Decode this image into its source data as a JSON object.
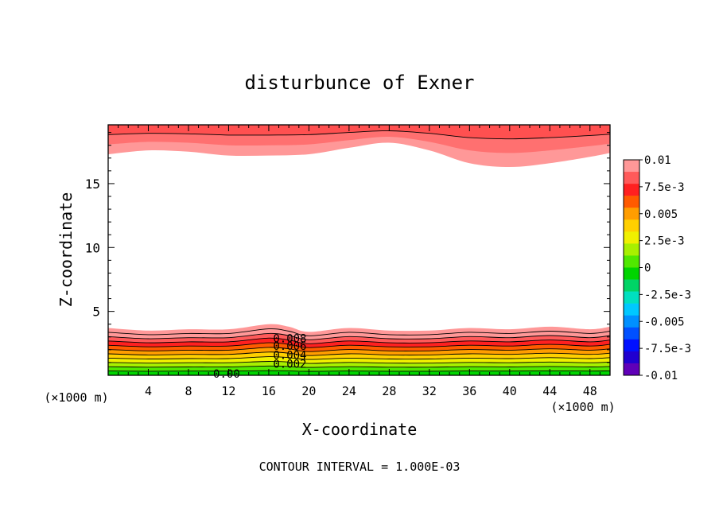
{
  "chart_data": {
    "type": "contour",
    "title": "disturbunce of Exner",
    "xlabel": "X-coordinate",
    "ylabel": "Z-coordinate",
    "x_unit": "(×1000 m)",
    "x_unit_right": "(×1000 m)",
    "footer": "CONTOUR INTERVAL = 1.000E-03",
    "xlim": [
      0,
      50
    ],
    "ylim": [
      0,
      19.6
    ],
    "x_ticks": [
      4,
      8,
      12,
      16,
      20,
      24,
      28,
      32,
      36,
      40,
      44,
      48
    ],
    "y_ticks": [
      5,
      10,
      15
    ],
    "colorbar": {
      "labels": [
        "0.01",
        "7.5e-3",
        "0.005",
        "2.5e-3",
        "0",
        "-2.5e-3",
        "-0.005",
        "-7.5e-3",
        "-0.01"
      ],
      "colors": [
        "#ff9898",
        "#ff5a5a",
        "#ff2020",
        "#ff5a00",
        "#ff9d00",
        "#ffd000",
        "#f0f000",
        "#a8f000",
        "#50e800",
        "#00d400",
        "#00d466",
        "#00e0c0",
        "#00c8ff",
        "#0090ff",
        "#0050ff",
        "#0010ff",
        "#2000d0",
        "#6000b8"
      ]
    },
    "contour_labels": [
      "0.008",
      "0.006",
      "0.004",
      "0.002",
      "0.00"
    ],
    "lower_band": {
      "x": [
        0,
        4,
        8,
        12,
        16,
        18,
        20,
        24,
        28,
        32,
        36,
        40,
        44,
        48,
        50
      ],
      "top_z": [
        3.7,
        3.5,
        3.6,
        3.6,
        4.0,
        3.8,
        3.4,
        3.7,
        3.5,
        3.5,
        3.7,
        3.6,
        3.8,
        3.6,
        3.8
      ],
      "levels": [
        0.01,
        0.009,
        0.008,
        0.007,
        0.006,
        0.005,
        0.004,
        0.003,
        0.002,
        0.001,
        0.0
      ]
    },
    "upper_band": {
      "x": [
        0,
        4,
        8,
        12,
        16,
        20,
        24,
        28,
        32,
        36,
        40,
        44,
        48,
        50
      ],
      "bottom_z": [
        17.3,
        17.6,
        17.5,
        17.2,
        17.2,
        17.3,
        17.8,
        18.2,
        17.6,
        16.6,
        16.3,
        16.6,
        17.1,
        17.4
      ],
      "levels": [
        0.01,
        0.009,
        0.008
      ]
    }
  }
}
